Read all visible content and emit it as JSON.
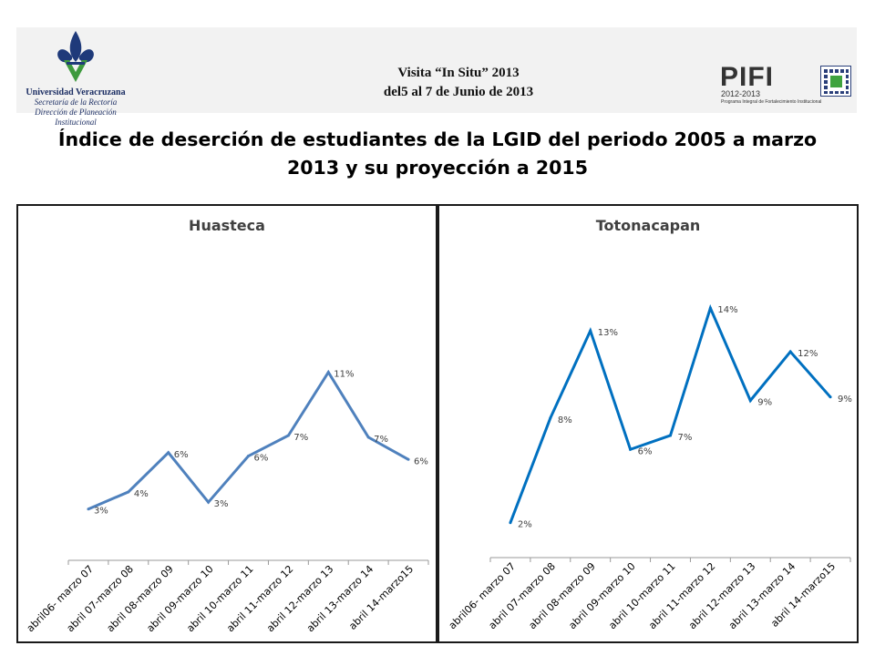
{
  "header": {
    "university_name": "Universidad Veracruzana",
    "university_sub1": "Secretaría de la Rectoría",
    "university_sub2": "Dirección de Planeación Institucional",
    "visit_line1": "Visita “In Situ” 2013",
    "visit_line2": "del5 al 7 de Junio de 2013",
    "pifi_word": "PIFI",
    "pifi_years": "2012-2013",
    "pifi_program": "Programa Integral de Fortalecimiento Institucional"
  },
  "title_line1": "Índice de deserción de estudiantes de la LGID del periodo 2005 a marzo",
  "title_line2": "2013 y su proyección a 2015",
  "colors": {
    "huasteca_line": "#4f81bd",
    "totonacapan_line": "#0070c0",
    "axis": "#999999",
    "label": "#404040"
  },
  "chart_data": [
    {
      "type": "line",
      "title": "Huasteca",
      "categories": [
        "abril06- marzo 07",
        "abril 07-marzo 08",
        "abril 08-marzo 09",
        "abril 09-marzo 10",
        "abril 10-marzo 11",
        "abril 11-marzo 12",
        "abril 12-marzo 13",
        "abril 13-marzo 14",
        "abril 14-marzo15"
      ],
      "values": [
        3.0,
        4.0,
        6.3,
        3.4,
        6.1,
        7.3,
        11.0,
        7.2,
        5.9
      ],
      "data_labels": [
        "3%",
        "4%",
        "6%",
        "3%",
        "6%",
        "7%",
        "11%",
        "7%",
        "6%"
      ],
      "ylim": [
        0,
        17
      ],
      "grid": false,
      "legend": "none"
    },
    {
      "type": "line",
      "title": "Totonacapan",
      "categories": [
        "abril06- marzo 07",
        "abril 07-marzo 08",
        "abril 08-marzo 09",
        "abril 09-marzo 10",
        "abril 10-marzo 11",
        "abril 11-marzo 12",
        "abril 12-marzo 13",
        "abril 13-marzo 14",
        "abril 14-marzo15"
      ],
      "values": [
        2.0,
        8.0,
        13.0,
        6.2,
        7.0,
        14.3,
        9.0,
        11.8,
        9.2
      ],
      "data_labels": [
        "2%",
        "8%",
        "13%",
        "6%",
        "7%",
        "14%",
        "9%",
        "12%",
        "9%"
      ],
      "ylim": [
        0,
        16.5
      ],
      "grid": false,
      "legend": "none"
    }
  ]
}
